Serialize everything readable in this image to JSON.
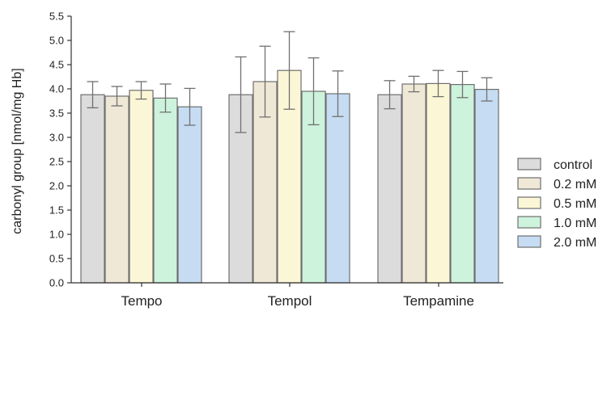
{
  "chart_data": {
    "type": "bar",
    "ylabel": "carbonyl group [nmol/mg Hb]",
    "xlabel": "",
    "ylim": [
      0,
      5.5
    ],
    "yticks": [
      "0.0",
      "0.5",
      "1.0",
      "1.5",
      "2.0",
      "2.5",
      "3.0",
      "3.5",
      "4.0",
      "4.5",
      "5.0",
      "5.5"
    ],
    "categories": [
      "Tempo",
      "Tempol",
      "Tempamine"
    ],
    "legend_position": "right",
    "grid": false,
    "series": [
      {
        "name": "control",
        "color": "#dcdcdc",
        "values": [
          3.88,
          3.88,
          3.88
        ],
        "errors": [
          0.27,
          0.78,
          0.29
        ]
      },
      {
        "name": "0.2 mM",
        "color": "#f0e8d6",
        "values": [
          3.85,
          4.15,
          4.1
        ],
        "errors": [
          0.2,
          0.73,
          0.16
        ]
      },
      {
        "name": "0.5 mM",
        "color": "#fbf7d6",
        "values": [
          3.97,
          4.38,
          4.11
        ],
        "errors": [
          0.18,
          0.8,
          0.27
        ]
      },
      {
        "name": "1.0 mM",
        "color": "#cdf3dc",
        "values": [
          3.81,
          3.95,
          4.09
        ],
        "errors": [
          0.29,
          0.69,
          0.27
        ]
      },
      {
        "name": "2.0 mM",
        "color": "#c6dcf3",
        "values": [
          3.63,
          3.9,
          3.99
        ],
        "errors": [
          0.38,
          0.47,
          0.24
        ]
      }
    ]
  }
}
